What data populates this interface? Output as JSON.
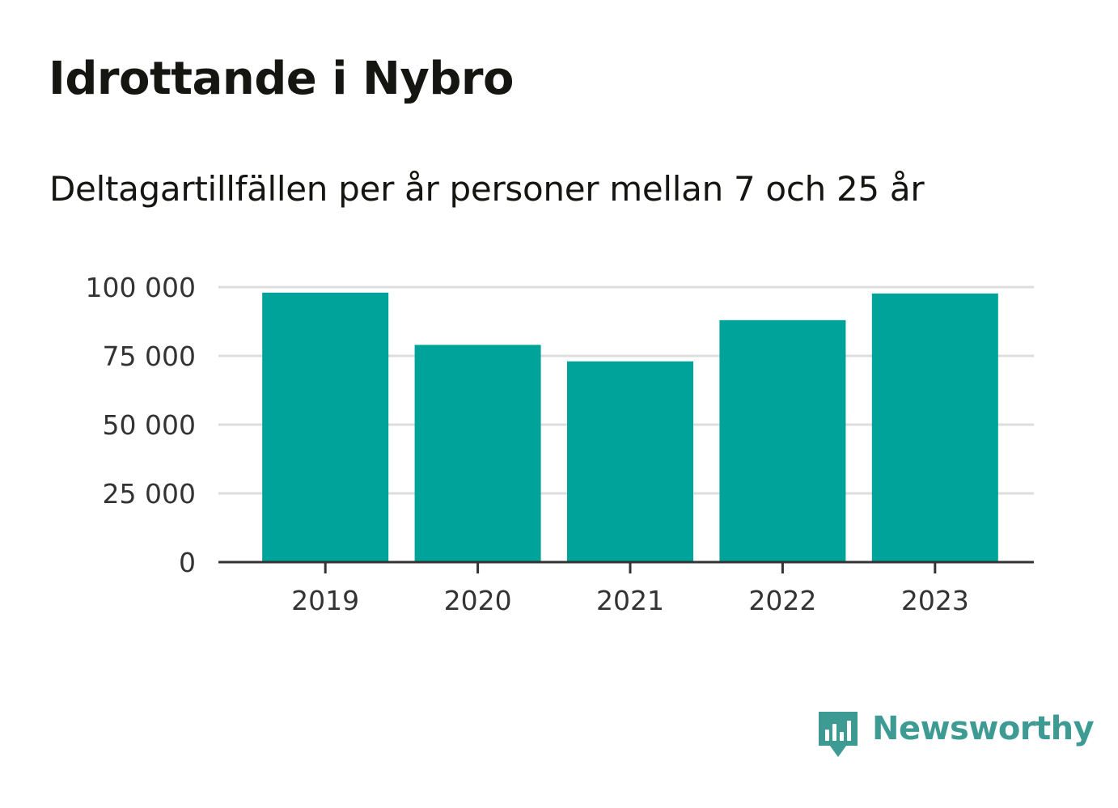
{
  "title": "Idrottande i Nybro",
  "subtitle": "Deltagartillfällen per år personer mellan 7 och 25 år",
  "brand": {
    "name": "Newsworthy",
    "icon": "newsworthy-logo-icon",
    "color": "#3e9b94"
  },
  "colors": {
    "bar": "#00a39a",
    "grid": "#dddddd",
    "axis": "#333333",
    "tick_text": "#333333"
  },
  "chart_data": {
    "type": "bar",
    "categories": [
      "2019",
      "2020",
      "2021",
      "2022",
      "2023"
    ],
    "values": [
      98000,
      79000,
      73000,
      88000,
      97700
    ],
    "ylim": [
      0,
      100000
    ],
    "yticks": [
      0,
      25000,
      50000,
      75000,
      100000
    ],
    "ytick_labels": [
      "0",
      "25 000",
      "50 000",
      "75 000",
      "100 000"
    ],
    "xlabel": "",
    "ylabel": "",
    "grid": true
  }
}
